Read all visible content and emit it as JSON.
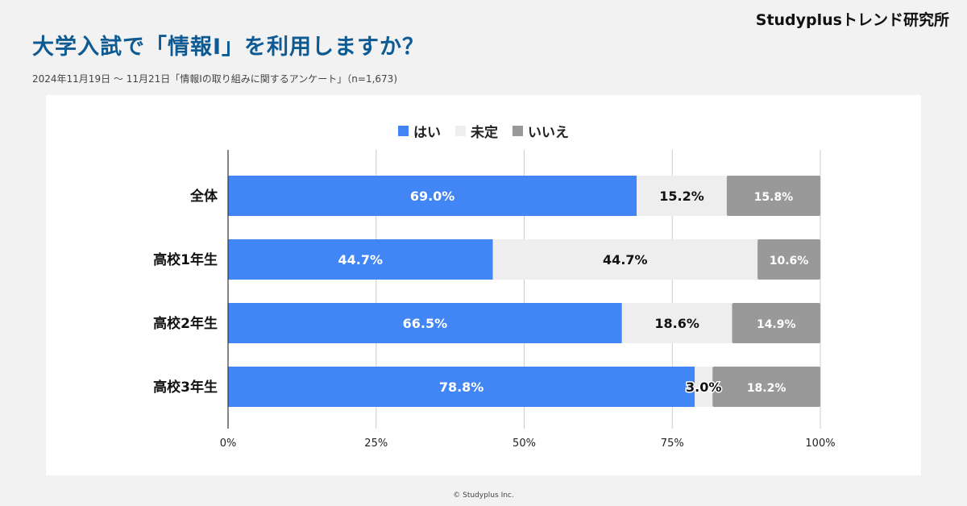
{
  "brand": "Studyplusトレンド研究所",
  "title": "大学入試で「情報Ⅰ」を利用しますか？",
  "subtitle": "2024年11月19日 〜 11月21日「情報Ⅰの取り組みに関するアンケート」（n=1,673)",
  "copyright": "© Studyplus Inc.",
  "chart_data": {
    "type": "bar",
    "orientation": "horizontal",
    "stacked": true,
    "categories": [
      "全体",
      "高校1年生",
      "高校2年生",
      "高校3年生"
    ],
    "series": [
      {
        "name": "はい",
        "color": "#4285f4",
        "values": [
          69.0,
          44.7,
          66.5,
          78.8
        ]
      },
      {
        "name": "未定",
        "color": "#eeeeee",
        "values": [
          15.2,
          44.7,
          18.6,
          3.0
        ]
      },
      {
        "name": "いいえ",
        "color": "#999999",
        "values": [
          15.8,
          10.6,
          14.9,
          18.2
        ]
      }
    ],
    "xlim": [
      0,
      100
    ],
    "xticks": [
      "0%",
      "25%",
      "50%",
      "75%",
      "100%"
    ],
    "grid": true,
    "legend": "top"
  }
}
